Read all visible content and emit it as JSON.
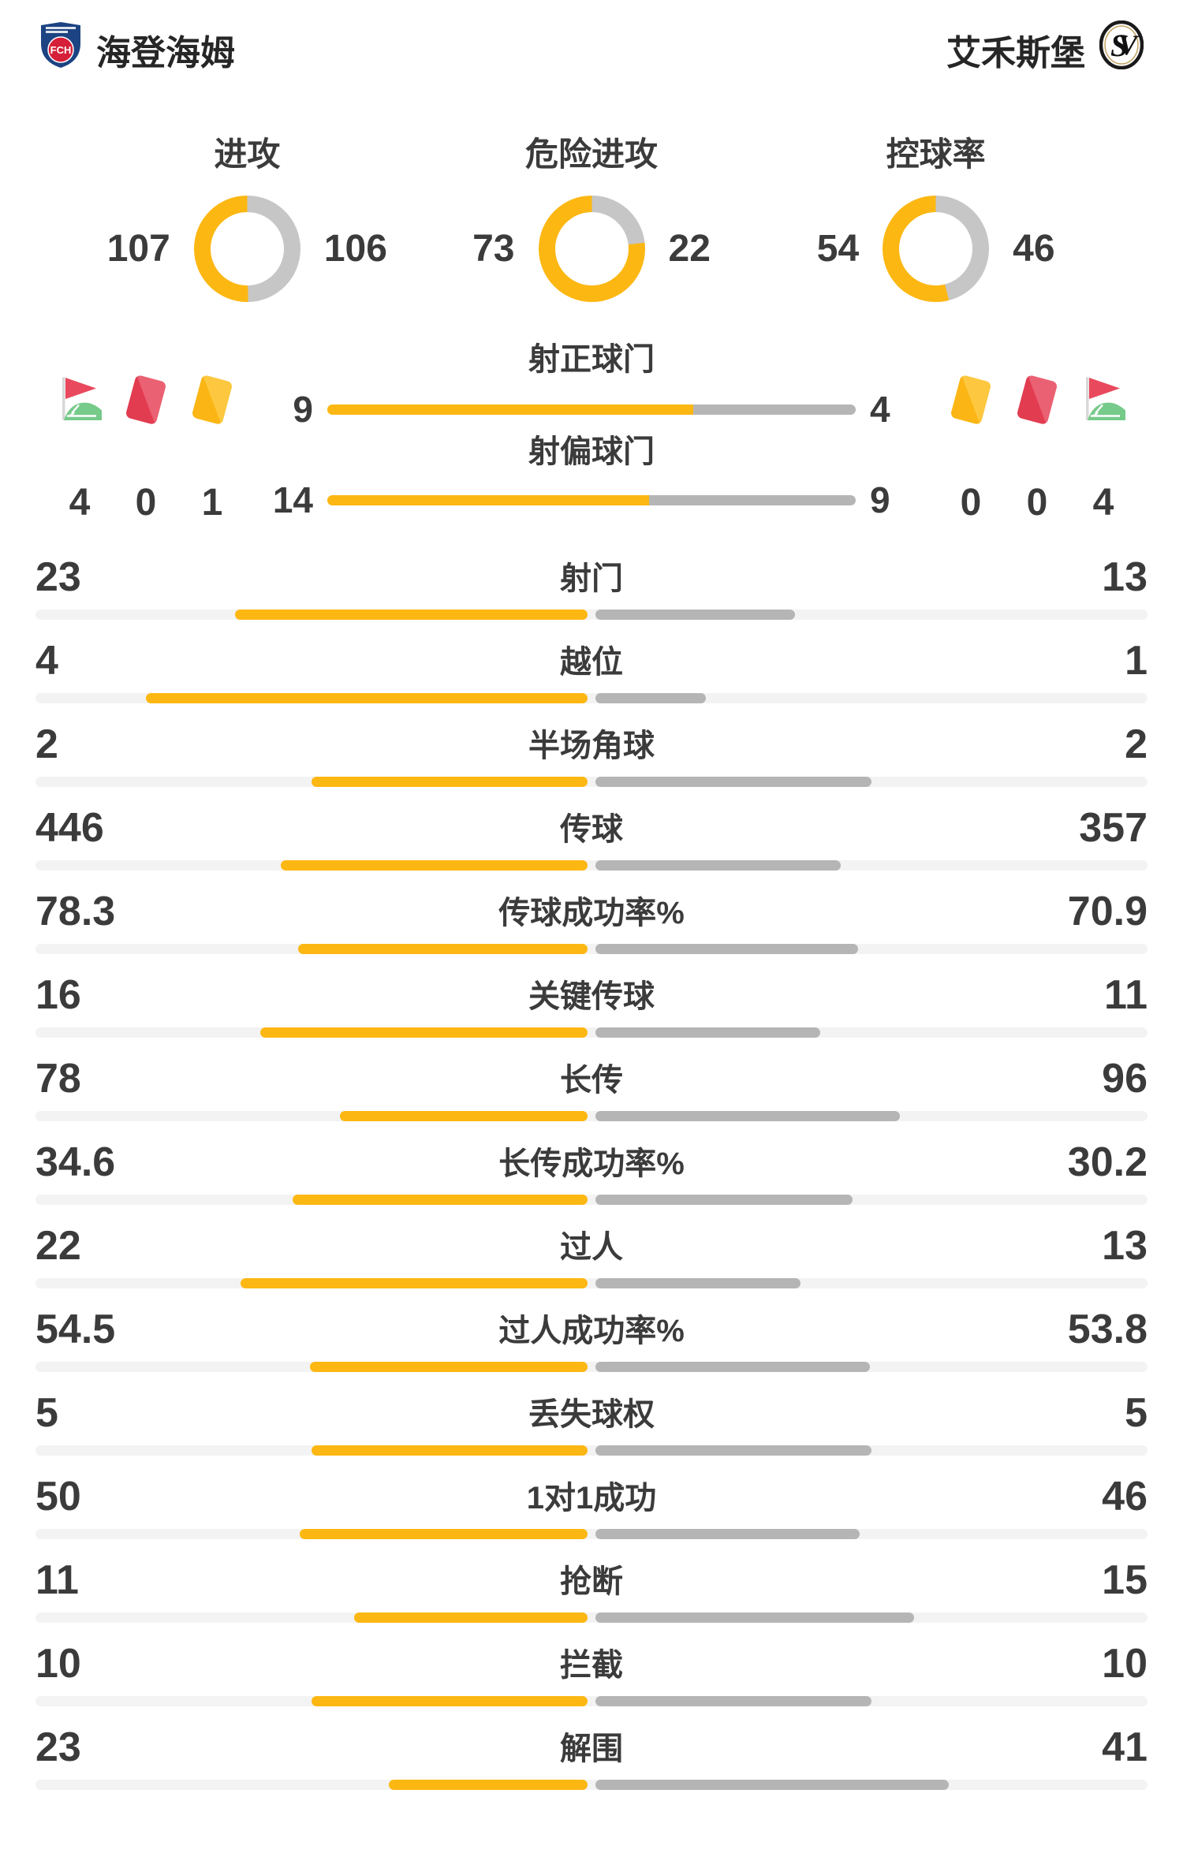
{
  "teams": {
    "home": {
      "name": "海登海姆"
    },
    "away": {
      "name": "艾禾斯堡"
    }
  },
  "colors": {
    "accent_yellow": "#fcb712",
    "bar_gray": "#b5b5b5",
    "donut_gray": "#c6c6c6",
    "track_gray": "#f3f3f3",
    "card_red": "#e24a5b",
    "card_yellow": "#fbb615",
    "flag_green": "#76ca8a"
  },
  "donuts": [
    {
      "label": "进攻",
      "home": 107,
      "away": 106
    },
    {
      "label": "危险进攻",
      "home": 73,
      "away": 22
    },
    {
      "label": "控球率",
      "home": 54,
      "away": 46
    }
  ],
  "middle": {
    "bars": [
      {
        "label": "射正球门",
        "home": 9,
        "away": 4
      },
      {
        "label": "射偏球门",
        "home": 14,
        "away": 9
      }
    ],
    "home_icons": [
      {
        "icon": "corner-flag-icon",
        "value": 4
      },
      {
        "icon": "red-card-icon",
        "value": 0
      },
      {
        "icon": "yellow-card-icon",
        "value": 1
      }
    ],
    "away_icons": [
      {
        "icon": "yellow-card-icon",
        "value": 0
      },
      {
        "icon": "red-card-icon",
        "value": 0
      },
      {
        "icon": "corner-flag-icon",
        "value": 4
      }
    ]
  },
  "stats": [
    {
      "label": "射门",
      "home": 23,
      "away": 13
    },
    {
      "label": "越位",
      "home": 4,
      "away": 1
    },
    {
      "label": "半场角球",
      "home": 2,
      "away": 2
    },
    {
      "label": "传球",
      "home": 446,
      "away": 357
    },
    {
      "label": "传球成功率%",
      "home": 78.3,
      "away": 70.9
    },
    {
      "label": "关键传球",
      "home": 16,
      "away": 11
    },
    {
      "label": "长传",
      "home": 78,
      "away": 96
    },
    {
      "label": "长传成功率%",
      "home": 34.6,
      "away": 30.2
    },
    {
      "label": "过人",
      "home": 22,
      "away": 13
    },
    {
      "label": "过人成功率%",
      "home": 54.5,
      "away": 53.8
    },
    {
      "label": "丢失球权",
      "home": 5,
      "away": 5
    },
    {
      "label": "1对1成功",
      "home": 50,
      "away": 46
    },
    {
      "label": "抢断",
      "home": 11,
      "away": 15
    },
    {
      "label": "拦截",
      "home": 10,
      "away": 10
    },
    {
      "label": "解围",
      "home": 23,
      "away": 41
    }
  ]
}
